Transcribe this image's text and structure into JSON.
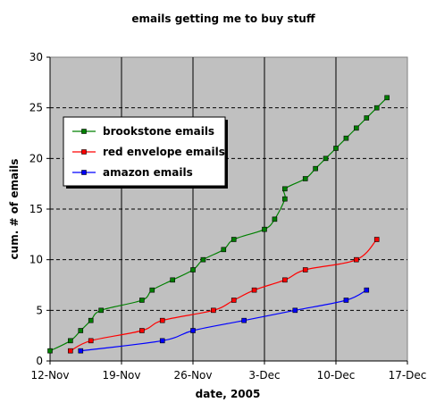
{
  "chart_data": {
    "type": "line",
    "title": "emails getting me to buy stuff",
    "xlabel": "date, 2005",
    "ylabel": "cum. # of emails",
    "x_axis": {
      "type": "date",
      "range": [
        "2005-11-12",
        "2005-12-17"
      ],
      "ticks": [
        {
          "date": "2005-11-12",
          "label": "12-Nov"
        },
        {
          "date": "2005-11-19",
          "label": "19-Nov"
        },
        {
          "date": "2005-11-26",
          "label": "26-Nov"
        },
        {
          "date": "2005-12-03",
          "label": "3-Dec"
        },
        {
          "date": "2005-12-10",
          "label": "10-Dec"
        },
        {
          "date": "2005-12-17",
          "label": "17-Dec"
        }
      ]
    },
    "ylim": [
      0,
      30
    ],
    "yticks": [
      0,
      5,
      10,
      15,
      20,
      25,
      30
    ],
    "grid": true,
    "plot_background": "#c0c0c0",
    "legend_position": "upper-left",
    "series": [
      {
        "name": "brookstone emails",
        "color": "#008000",
        "points": [
          [
            "2005-11-12",
            1
          ],
          [
            "2005-11-14",
            2
          ],
          [
            "2005-11-15",
            3
          ],
          [
            "2005-11-16",
            4
          ],
          [
            "2005-11-17",
            5
          ],
          [
            "2005-11-21",
            6
          ],
          [
            "2005-11-22",
            7
          ],
          [
            "2005-11-24",
            8
          ],
          [
            "2005-11-26",
            9
          ],
          [
            "2005-11-27",
            10
          ],
          [
            "2005-11-29",
            11
          ],
          [
            "2005-11-30",
            12
          ],
          [
            "2005-12-03",
            13
          ],
          [
            "2005-12-04",
            14
          ],
          [
            "2005-12-05",
            16
          ],
          [
            "2005-12-05",
            17
          ],
          [
            "2005-12-07",
            18
          ],
          [
            "2005-12-08",
            19
          ],
          [
            "2005-12-09",
            20
          ],
          [
            "2005-12-10",
            21
          ],
          [
            "2005-12-11",
            22
          ],
          [
            "2005-12-12",
            23
          ],
          [
            "2005-12-13",
            24
          ],
          [
            "2005-12-14",
            25
          ],
          [
            "2005-12-15",
            26
          ]
        ]
      },
      {
        "name": "red envelope emails",
        "color": "#ff0000",
        "points": [
          [
            "2005-11-14",
            1
          ],
          [
            "2005-11-16",
            2
          ],
          [
            "2005-11-21",
            3
          ],
          [
            "2005-11-23",
            4
          ],
          [
            "2005-11-28",
            5
          ],
          [
            "2005-11-30",
            6
          ],
          [
            "2005-12-02",
            7
          ],
          [
            "2005-12-05",
            8
          ],
          [
            "2005-12-07",
            9
          ],
          [
            "2005-12-12",
            10
          ],
          [
            "2005-12-14",
            12
          ]
        ]
      },
      {
        "name": "amazon emails",
        "color": "#0000ff",
        "points": [
          [
            "2005-11-15",
            1
          ],
          [
            "2005-11-23",
            2
          ],
          [
            "2005-11-26",
            3
          ],
          [
            "2005-12-01",
            4
          ],
          [
            "2005-12-06",
            5
          ],
          [
            "2005-12-11",
            6
          ],
          [
            "2005-12-13",
            7
          ]
        ]
      }
    ]
  }
}
